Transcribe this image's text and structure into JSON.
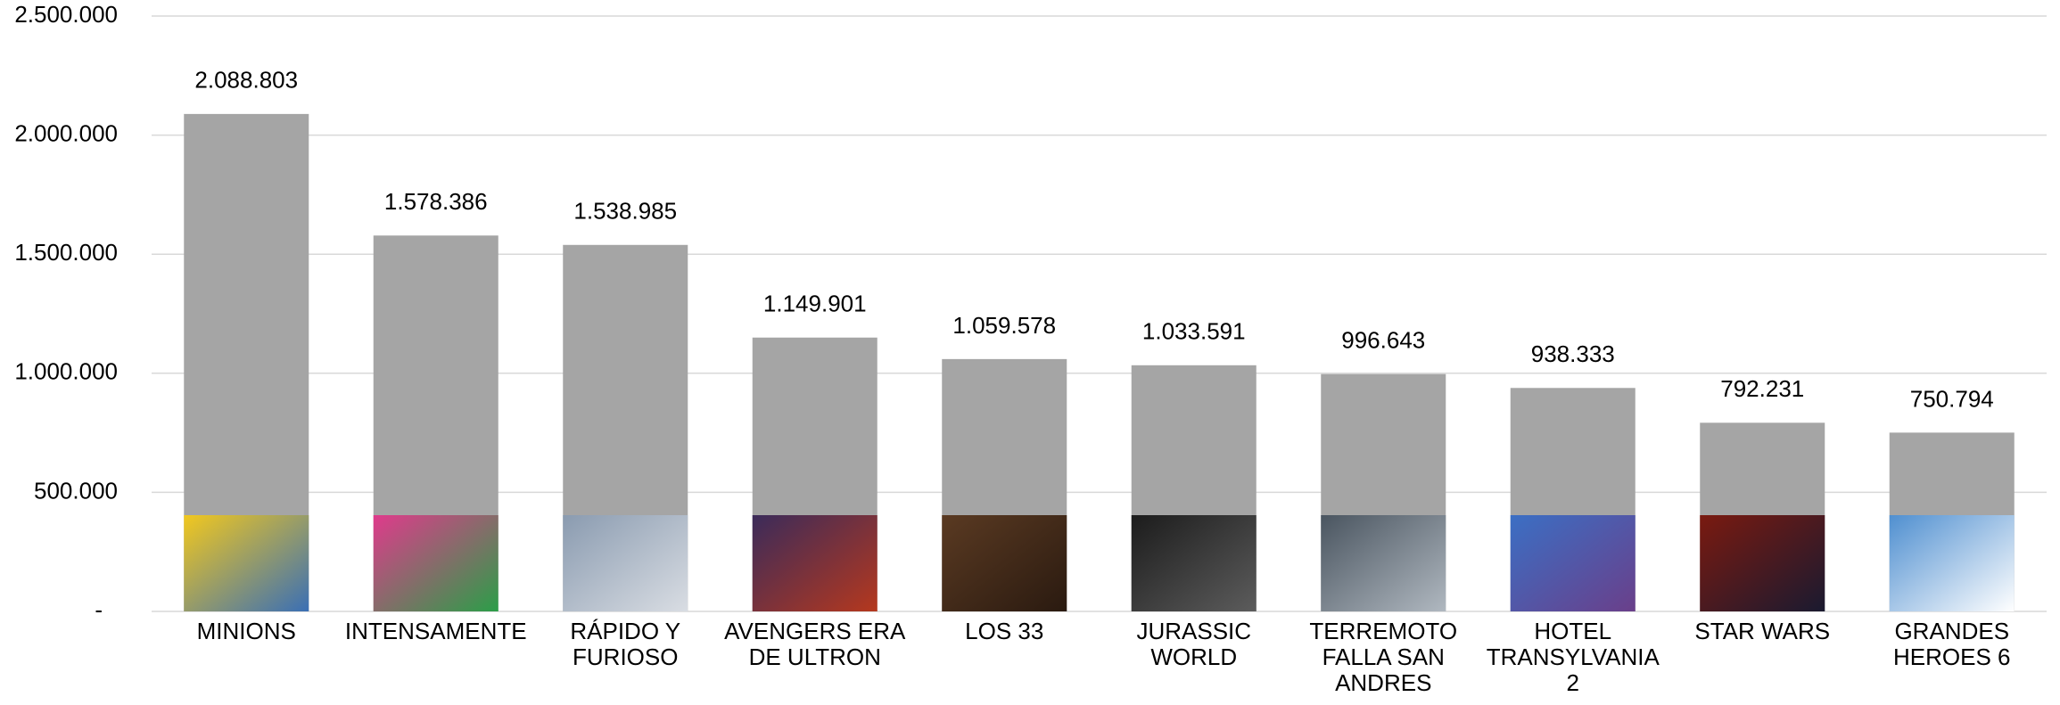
{
  "chart_data": {
    "type": "bar",
    "categories": [
      "MINIONS",
      "INTENSAMENTE",
      "RÁPIDO Y FURIOSO",
      "AVENGERS ERA DE ULTRON",
      "LOS 33",
      "JURASSIC WORLD",
      "TERREMOTO FALLA SAN ANDRES",
      "HOTEL TRANSYLVANIA 2",
      "STAR WARS",
      "GRANDES HEROES 6"
    ],
    "values": [
      2088803,
      1578386,
      1538985,
      1149901,
      1059578,
      1033591,
      996643,
      938333,
      792231,
      750794
    ],
    "value_labels": [
      "2.088.803",
      "1.578.386",
      "1.538.985",
      "1.149.901",
      "1.059.578",
      "1.033.591",
      "996.643",
      "938.333",
      "792.231",
      "750.794"
    ],
    "color": "#a5a5a5",
    "ylim": [
      0,
      2500000
    ],
    "yticks": [
      {
        "value": 0,
        "label": "-"
      },
      {
        "value": 500000,
        "label": "500.000"
      },
      {
        "value": 1000000,
        "label": "1.000.000"
      },
      {
        "value": 1500000,
        "label": "1.500.000"
      },
      {
        "value": 2000000,
        "label": "2.000.000"
      },
      {
        "value": 2500000,
        "label": "2.500.000"
      }
    ],
    "grid": true
  }
}
